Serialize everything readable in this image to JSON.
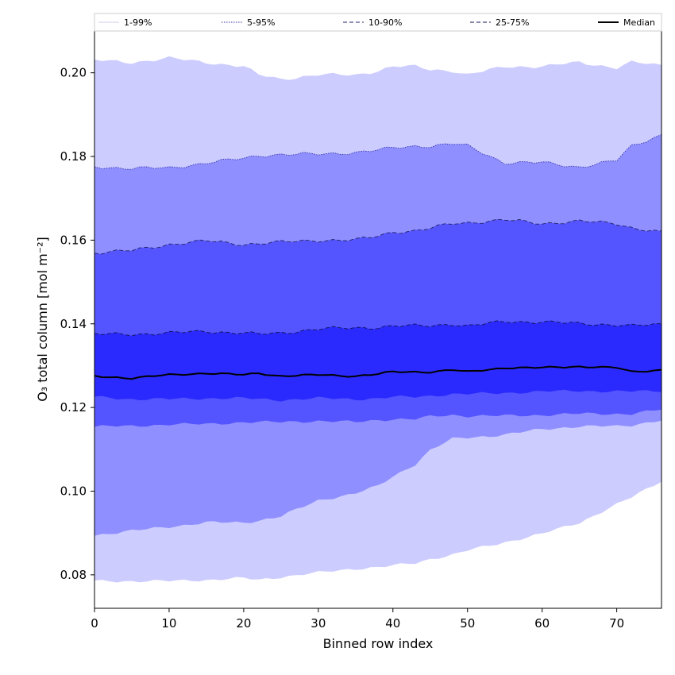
{
  "chart_data": {
    "type": "area",
    "title": "",
    "xlabel": "Binned row index",
    "ylabel": "O₃ total column [mol m⁻²]",
    "xlim": [
      0,
      76
    ],
    "ylim": [
      0.072,
      0.21
    ],
    "x_ticks": [
      0,
      10,
      20,
      30,
      40,
      50,
      60,
      70
    ],
    "y_ticks": [
      0.08,
      0.1,
      0.12,
      0.14,
      0.16,
      0.18,
      0.2
    ],
    "y_tick_labels": [
      "0.08",
      "0.10",
      "0.12",
      "0.14",
      "0.16",
      "0.18",
      "0.20"
    ],
    "x_tick_labels": [
      "0",
      "10",
      "20",
      "30",
      "40",
      "50",
      "60",
      "70"
    ],
    "x_knots": [
      0,
      5,
      10,
      15,
      20,
      22,
      25,
      30,
      35,
      38,
      40,
      43,
      45,
      48,
      50,
      55,
      60,
      65,
      70,
      72,
      76
    ],
    "bands": [
      {
        "name": "1-99%",
        "color": "#ccccff",
        "line_color": "#ccccee",
        "line_style": "solid",
        "upper": [
          0.203,
          0.2025,
          0.2035,
          0.2025,
          0.2015,
          0.1995,
          0.1985,
          0.1995,
          0.1995,
          0.2005,
          0.2015,
          0.2015,
          0.2008,
          0.2005,
          0.1995,
          0.2015,
          0.2015,
          0.2025,
          0.2012,
          0.2025,
          0.2018
        ],
        "lower": [
          0.0785,
          0.0785,
          0.0785,
          0.0788,
          0.0792,
          0.0788,
          0.0795,
          0.0805,
          0.0815,
          0.0818,
          0.0822,
          0.0828,
          0.0838,
          0.0848,
          0.0858,
          0.0878,
          0.0898,
          0.0925,
          0.0968,
          0.0985,
          0.1025
        ]
      },
      {
        "name": "5-95%",
        "color": "#8f8fff",
        "line_color": "#3333aa",
        "line_style": "dotted",
        "upper": [
          0.1775,
          0.1772,
          0.1772,
          0.1785,
          0.1795,
          0.1802,
          0.1805,
          0.1805,
          0.181,
          0.1815,
          0.182,
          0.1825,
          0.1825,
          0.183,
          0.1825,
          0.1785,
          0.1785,
          0.1775,
          0.179,
          0.1825,
          0.1852
        ],
        "lower": [
          0.0895,
          0.0905,
          0.0915,
          0.0925,
          0.0925,
          0.093,
          0.094,
          0.0978,
          0.0995,
          0.1012,
          0.1035,
          0.1065,
          0.1098,
          0.1125,
          0.1128,
          0.1135,
          0.1148,
          0.1155,
          0.1155,
          0.1158,
          0.117
        ]
      },
      {
        "name": "10-90%",
        "color": "#5555ff",
        "line_color": "#222266",
        "line_style": "dashed",
        "upper": [
          0.157,
          0.1575,
          0.159,
          0.1598,
          0.159,
          0.1592,
          0.1595,
          0.16,
          0.16,
          0.161,
          0.162,
          0.1622,
          0.1628,
          0.164,
          0.1642,
          0.1648,
          0.164,
          0.1645,
          0.164,
          0.163,
          0.1618
        ],
        "lower": [
          0.1155,
          0.1155,
          0.116,
          0.116,
          0.1165,
          0.1165,
          0.1165,
          0.1168,
          0.1165,
          0.117,
          0.1172,
          0.1172,
          0.1178,
          0.1182,
          0.118,
          0.118,
          0.1182,
          0.1185,
          0.1185,
          0.1185,
          0.1195
        ]
      },
      {
        "name": "25-75%",
        "color": "#2a2aff",
        "line_color": "#111155",
        "line_style": "dashed",
        "upper": [
          0.1375,
          0.1375,
          0.1378,
          0.1382,
          0.1378,
          0.1375,
          0.1378,
          0.1388,
          0.139,
          0.1392,
          0.1395,
          0.1395,
          0.1395,
          0.14,
          0.1395,
          0.1405,
          0.1405,
          0.14,
          0.1398,
          0.1395,
          0.1398
        ],
        "lower": [
          0.1225,
          0.122,
          0.122,
          0.1222,
          0.1222,
          0.122,
          0.1218,
          0.1222,
          0.122,
          0.1222,
          0.1225,
          0.1225,
          0.1228,
          0.1232,
          0.1232,
          0.1235,
          0.1238,
          0.124,
          0.1238,
          0.1238,
          0.124
        ]
      }
    ],
    "median": {
      "name": "Median",
      "color": "#000000",
      "values": [
        0.1275,
        0.127,
        0.1278,
        0.1282,
        0.1278,
        0.1282,
        0.1275,
        0.1278,
        0.1275,
        0.128,
        0.1285,
        0.1285,
        0.1285,
        0.129,
        0.1285,
        0.1295,
        0.1295,
        0.1298,
        0.1295,
        0.1285,
        0.129
      ]
    },
    "legend": {
      "placement": "top",
      "entries": [
        "1-99%",
        "5-95%",
        "10-90%",
        "25-75%",
        "Median"
      ]
    }
  }
}
